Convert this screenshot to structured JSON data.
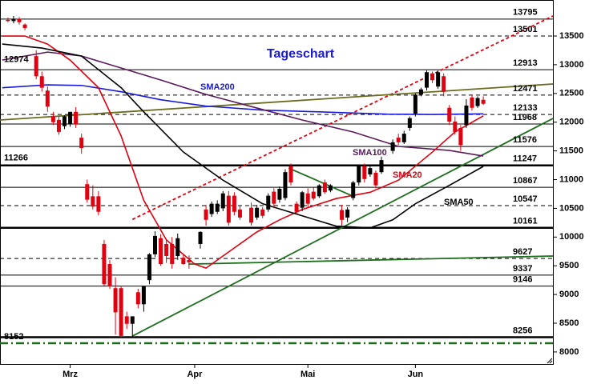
{
  "chart_data": {
    "type": "candlestick",
    "title": "Tageschart",
    "title_color": "#1a1adc",
    "up_color": "#000000",
    "down_color": "#e0000f",
    "x": [
      0,
      1,
      2,
      3,
      5,
      6,
      7,
      8,
      9,
      10,
      11,
      12,
      13,
      14,
      15,
      16,
      17,
      18,
      19,
      20,
      21,
      22,
      23,
      24,
      25,
      26,
      27,
      28,
      29,
      30,
      31,
      32,
      34,
      35,
      36,
      37,
      38,
      39,
      40,
      41,
      43,
      44,
      45,
      46,
      47,
      48,
      49,
      50,
      51,
      52,
      53,
      54,
      55,
      56,
      57,
      59,
      60,
      61,
      62,
      63,
      64,
      65,
      66,
      68,
      69,
      70,
      71,
      72,
      73,
      74,
      75,
      76,
      77,
      78,
      79,
      80,
      81,
      82,
      83,
      84
    ],
    "open": [
      13780,
      13760,
      13800,
      13700,
      13150,
      12800,
      12550,
      12100,
      12040,
      11930,
      11970,
      12180,
      11730,
      10920,
      10710,
      10710,
      9880,
      9530,
      9110,
      9110,
      8620,
      8490,
      9040,
      8830,
      9250,
      9700,
      9980,
      9880,
      9880,
      9670,
      9640,
      9600,
      9880,
      10480,
      10400,
      10440,
      10500,
      10720,
      10720,
      10480,
      10510,
      10340,
      10480,
      10480,
      10790,
      10650,
      10680,
      11230,
      10580,
      10510,
      10760,
      10790,
      10710,
      10950,
      10810,
      10470,
      10340,
      10680,
      10950,
      11230,
      11090,
      11120,
      11130,
      11500,
      11730,
      11650,
      11900,
      12150,
      12480,
      12600,
      12850,
      12620,
      12800,
      12250,
      12010,
      11900,
      11950,
      12430,
      12280,
      12390
    ],
    "high": [
      13820,
      13850,
      13830,
      13720,
      13250,
      12880,
      12620,
      12180,
      12100,
      12120,
      12180,
      12260,
      11800,
      11000,
      10900,
      10800,
      9950,
      9600,
      9300,
      9150,
      8700,
      8620,
      9100,
      9150,
      9720,
      10100,
      10050,
      9950,
      10000,
      10060,
      9700,
      9680,
      10100,
      10560,
      10620,
      10640,
      10800,
      10800,
      10780,
      10550,
      10600,
      10560,
      10520,
      10760,
      10850,
      10880,
      11180,
      11280,
      10620,
      10800,
      10850,
      10860,
      10920,
      11000,
      10920,
      10560,
      10520,
      10980,
      11250,
      11280,
      11250,
      11160,
      11400,
      11700,
      11800,
      11850,
      12100,
      12500,
      12600,
      12900,
      12880,
      12900,
      12850,
      12300,
      12100,
      11950,
      12400,
      12480,
      12450,
      12450
    ],
    "low": [
      13740,
      13720,
      13700,
      13600,
      12750,
      12530,
      12180,
      11950,
      11780,
      11880,
      11920,
      11900,
      11450,
      10600,
      10480,
      10380,
      9150,
      9100,
      8300,
      8250,
      8400,
      8260,
      8760,
      8700,
      9180,
      9650,
      9500,
      9550,
      9450,
      9600,
      9520,
      9450,
      9800,
      10200,
      10350,
      10400,
      10450,
      10200,
      10380,
      10300,
      10200,
      10300,
      10330,
      10440,
      10500,
      10600,
      10640,
      10900,
      10400,
      10450,
      10500,
      10640,
      10680,
      10750,
      10780,
      10200,
      10260,
      10640,
      10900,
      10950,
      11050,
      10850,
      11100,
      11450,
      11600,
      11620,
      11850,
      12100,
      12450,
      12550,
      12680,
      12580,
      12450,
      11950,
      11780,
      11500,
      11900,
      12200,
      12250,
      12300
    ],
    "close": [
      13760,
      13800,
      13740,
      13640,
      12800,
      12600,
      12270,
      12000,
      11830,
      12100,
      12180,
      11970,
      11550,
      10650,
      10530,
      10440,
      9180,
      9140,
      8690,
      8280,
      8490,
      8620,
      8830,
      9140,
      9700,
      10020,
      9530,
      9670,
      9530,
      9980,
      9530,
      9560,
      10090,
      10300,
      10580,
      10580,
      10760,
      10250,
      10440,
      10340,
      10250,
      10510,
      10370,
      10720,
      10580,
      10840,
      11130,
      10950,
      10440,
      10780,
      10580,
      10670,
      10900,
      10780,
      10900,
      10300,
      10480,
      10950,
      11230,
      11010,
      11200,
      10900,
      11340,
      11650,
      11650,
      11800,
      12070,
      12480,
      12570,
      12870,
      12730,
      12870,
      12530,
      12010,
      11830,
      11600,
      12290,
      12250,
      12420,
      12320
    ],
    "xlim": [
      -1.4,
      96.3
    ],
    "xticks": [
      {
        "value": 11,
        "label": "Mrz"
      },
      {
        "value": 33,
        "label": "Apr"
      },
      {
        "value": 53,
        "label": "Mai"
      },
      {
        "value": 72,
        "label": "Jun"
      }
    ],
    "ylim": [
      7790,
      14127
    ],
    "yticks": [
      8000,
      8500,
      9000,
      9500,
      10000,
      10500,
      11000,
      11500,
      12000,
      12500,
      13000,
      13500
    ],
    "series": [
      {
        "name": "SMA200",
        "color": "#1a1adc",
        "x": [
          -1,
          7,
          13,
          20,
          27,
          35,
          45,
          55,
          67,
          75,
          84
        ],
        "values": [
          12600,
          12650,
          12640,
          12530,
          12390,
          12280,
          12210,
          12180,
          12140,
          12135,
          12145
        ]
      },
      {
        "name": "SMA100",
        "color": "#5a1a5a",
        "x": [
          -1,
          7,
          13,
          20,
          27,
          35,
          44,
          52,
          61,
          69,
          78,
          84
        ],
        "values": [
          13082,
          13220,
          13152,
          12943,
          12734,
          12483,
          12246,
          12038,
          11829,
          11578,
          11508,
          11410
        ]
      },
      {
        "name": "SMA20",
        "color": "#e0000f",
        "x": [
          -1,
          3,
          7,
          11,
          16,
          20,
          24,
          28,
          33,
          35,
          38,
          44,
          48,
          52,
          58,
          64,
          69,
          75,
          79,
          84
        ],
        "values": [
          13500,
          13500,
          13360,
          13080,
          12600,
          11760,
          10640,
          9950,
          9530,
          9460,
          9670,
          10090,
          10300,
          10480,
          10670,
          10780,
          10990,
          11480,
          11830,
          12110
        ]
      },
      {
        "name": "SMA50",
        "color": "#000000",
        "x": [
          -1,
          6,
          13,
          20,
          24,
          31,
          38,
          45,
          52,
          58,
          64,
          68,
          72,
          78,
          84
        ],
        "values": [
          13360,
          13290,
          13150,
          12600,
          12180,
          11480,
          10990,
          10580,
          10370,
          10190,
          10160,
          10300,
          10580,
          10900,
          11230
        ]
      }
    ],
    "trendlines": [
      {
        "color": "#e0000f",
        "style": "dashed",
        "x": [
          22,
          96.3
        ],
        "values": [
          10307,
          13848
        ]
      },
      {
        "color": "#1e6e1e",
        "style": "solid",
        "x": [
          22,
          96.3
        ],
        "values": [
          8276,
          12065
        ]
      },
      {
        "color": "#1e6e1e",
        "style": "solid",
        "x": [
          49.6,
          60.9
        ],
        "values": [
          11202,
          10714
        ]
      },
      {
        "color": "#6b6b1e",
        "style": "solid",
        "x": [
          -1.4,
          96.3
        ],
        "values": [
          12038,
          12665
        ]
      },
      {
        "color": "#1e6e1e",
        "style": "solid",
        "x": [
          31.9,
          96.3
        ],
        "values": [
          9529,
          9669
        ]
      }
    ],
    "levels": [
      {
        "value": 13795,
        "side": "right",
        "style": "solid"
      },
      {
        "value": 13501,
        "side": "right",
        "style": "dashed"
      },
      {
        "value": 12913,
        "side": "right",
        "style": "solid"
      },
      {
        "value": 12471,
        "side": "right",
        "style": "dashed"
      },
      {
        "value": 12133,
        "side": "right",
        "style": "dashed"
      },
      {
        "value": 11968,
        "side": "right",
        "style": "solid"
      },
      {
        "value": 11576,
        "side": "right",
        "style": "solid"
      },
      {
        "value": 11247,
        "side": "right",
        "style": "thick"
      },
      {
        "value": 10867,
        "side": "right",
        "style": "solid"
      },
      {
        "value": 10547,
        "side": "right",
        "style": "dashed"
      },
      {
        "value": 10161,
        "side": "right",
        "style": "thick"
      },
      {
        "value": 9627,
        "side": "right",
        "style": "dashed"
      },
      {
        "value": 9337,
        "side": "right",
        "style": "solid"
      },
      {
        "value": 9146,
        "side": "right",
        "style": "solid"
      },
      {
        "value": 8256,
        "side": "right",
        "style": "thick"
      },
      {
        "value": 12974,
        "side": "left",
        "style": "none"
      },
      {
        "value": 11266,
        "side": "left",
        "style": "none"
      },
      {
        "value": 8152,
        "side": "left",
        "style": "dashdot"
      }
    ]
  }
}
